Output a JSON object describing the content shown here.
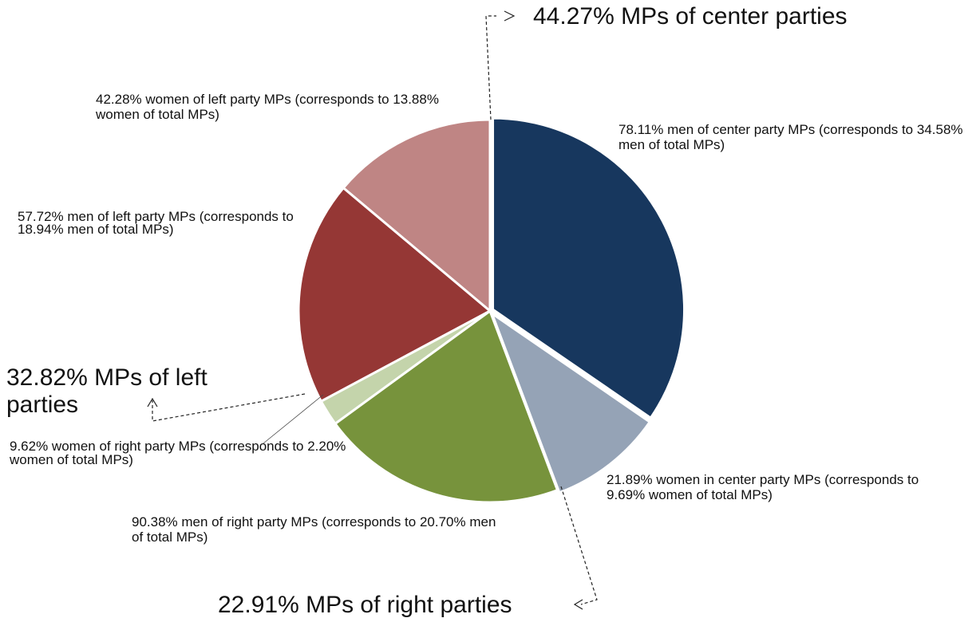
{
  "chart_data": {
    "type": "pie",
    "categories": [
      "men of center party MPs",
      "women in center party MPs",
      "men of right party MPs",
      "women of right party MPs",
      "men of left party MPs",
      "women of left party MPs"
    ],
    "values": [
      34.58,
      9.69,
      20.7,
      2.2,
      18.94,
      13.88
    ],
    "value_labels": [
      "78.11% men of center party MPs (corresponds to 34.58% men of total MPs)",
      "21.89% women in center party MPs (corresponds to 9.69% women of total MPs)",
      "90.38% men of right party MPs (corresponds to 20.70% men of total MPs)",
      "9.62% women of right party MPs (corresponds to 2.20% women of total MPs)",
      "57.72% men of left party MPs (corresponds to 18.94% men of total MPs)",
      "42.28% women of left party MPs (corresponds to 13.88% women of total MPs)"
    ],
    "colors": [
      "#17375e",
      "#95a3b6",
      "#77933c",
      "#c4d4ab",
      "#953735",
      "#bf8584"
    ],
    "annotations": [
      "44.27% MPs of center parties",
      "32.82% MPs of left parties",
      "22.91% MPs of right parties"
    ]
  }
}
